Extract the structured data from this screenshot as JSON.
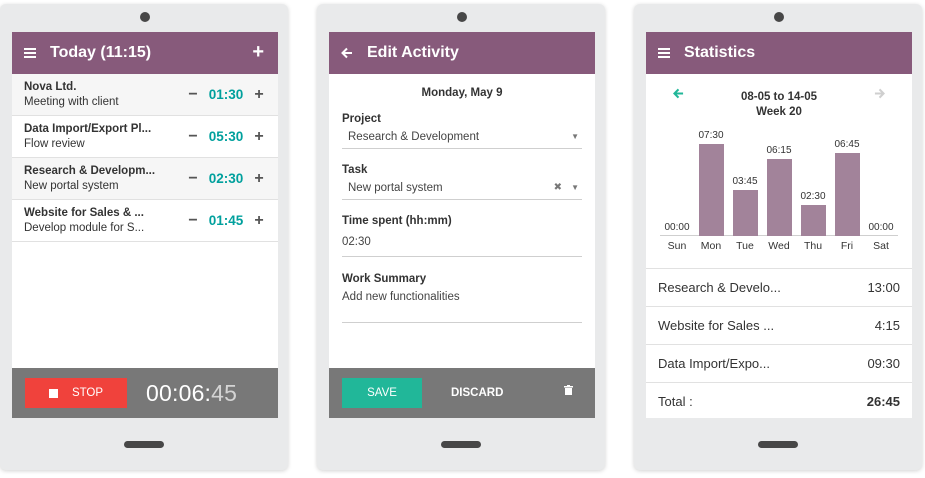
{
  "today_screen": {
    "title": "Today (11:15)",
    "icons": {
      "menu": "hamburger-icon",
      "add": "plus-icon"
    },
    "activities": [
      {
        "project": "Nova Ltd.",
        "task": "Meeting with client",
        "time": "01:30"
      },
      {
        "project": "Data Import/Export Pl...",
        "task": "Flow review",
        "time": "05:30"
      },
      {
        "project": "Research & Developm...",
        "task": "New portal system",
        "time": "02:30"
      },
      {
        "project": "Website for Sales & ...",
        "task": "Develop module for S...",
        "time": "01:45"
      }
    ],
    "stop_label": "STOP",
    "timer_main": "00:06:",
    "timer_seconds": "45"
  },
  "edit_screen": {
    "title": "Edit Activity",
    "date": "Monday, May 9",
    "project_label": "Project",
    "project_value": "Research & Development",
    "task_label": "Task",
    "task_value": "New portal system",
    "time_label": "Time spent (hh:mm)",
    "time_value": "02:30",
    "summary_label": "Work Summary",
    "summary_value": "Add new functionalities",
    "save_label": "SAVE",
    "discard_label": "DISCARD"
  },
  "stats_screen": {
    "title": "Statistics",
    "range": "08-05 to 14-05",
    "week": "Week 20",
    "chart_data": {
      "type": "bar",
      "categories": [
        "Sun",
        "Mon",
        "Tue",
        "Wed",
        "Thu",
        "Fri",
        "Sat"
      ],
      "values": [
        0,
        7.5,
        3.75,
        6.25,
        2.5,
        6.75,
        0
      ],
      "value_labels": [
        "00:00",
        "07:30",
        "03:45",
        "06:15",
        "02:30",
        "06:45",
        "00:00"
      ],
      "ylim": [
        0,
        7.5
      ],
      "grid": false
    },
    "rows": [
      {
        "name": "Research & Develo...",
        "value": "13:00"
      },
      {
        "name": "Website for Sales ...",
        "value": "4:15"
      },
      {
        "name": "Data Import/Expo...",
        "value": "09:30"
      }
    ],
    "total_label": "Total :",
    "total_value": "26:45"
  },
  "colors": {
    "brand": "#875a7b",
    "accent": "#00a09d",
    "stop": "#f0423c",
    "save": "#21b799",
    "bar": "#a2839a"
  }
}
